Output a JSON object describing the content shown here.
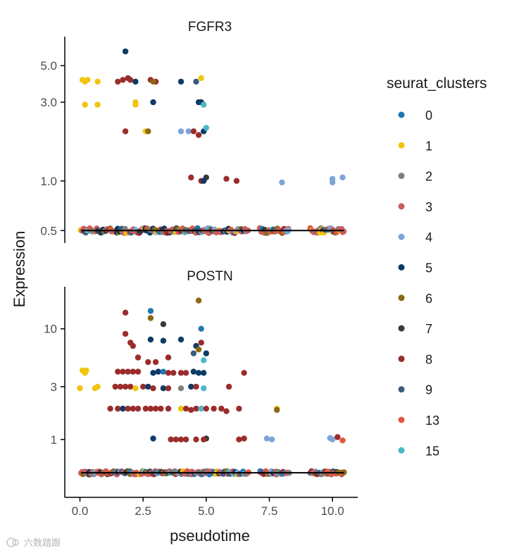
{
  "chart_data": {
    "type": "scatter",
    "xlabel": "pseudotime",
    "ylabel": "Expression",
    "x_ticks": [
      "0.0",
      "2.5",
      "5.0",
      "7.5",
      "10.0"
    ],
    "xlim": [
      -0.6,
      11.0
    ],
    "panels": [
      {
        "title": "FGFR3",
        "yscale": "log10",
        "ylim": [
          0.42,
          7.5
        ],
        "y_ticks": [
          0.5,
          1.0,
          3.0,
          5.0
        ],
        "y_tick_labels": [
          "0.5",
          "1.0",
          "3.0",
          "5.0"
        ],
        "trend_line": {
          "x": [
            0.05,
            10.45
          ],
          "y": [
            0.5,
            0.5
          ]
        },
        "points": [
          {
            "x": 1.8,
            "y": 6.1,
            "c": "5"
          },
          {
            "x": 0.1,
            "y": 4.1,
            "c": "1"
          },
          {
            "x": 0.2,
            "y": 4.0,
            "c": "1"
          },
          {
            "x": 0.3,
            "y": 4.1,
            "c": "1"
          },
          {
            "x": 0.7,
            "y": 4.0,
            "c": "1"
          },
          {
            "x": 0.2,
            "y": 2.9,
            "c": "1"
          },
          {
            "x": 0.7,
            "y": 2.9,
            "c": "1"
          },
          {
            "x": 2.2,
            "y": 3.0,
            "c": "1"
          },
          {
            "x": 2.2,
            "y": 2.9,
            "c": "1"
          },
          {
            "x": 4.8,
            "y": 4.2,
            "c": "1"
          },
          {
            "x": 2.6,
            "y": 2.0,
            "c": "1"
          },
          {
            "x": 2.7,
            "y": 2.0,
            "c": "6"
          },
          {
            "x": 1.5,
            "y": 4.0,
            "c": "8"
          },
          {
            "x": 1.7,
            "y": 4.1,
            "c": "8"
          },
          {
            "x": 1.9,
            "y": 4.2,
            "c": "8"
          },
          {
            "x": 2.0,
            "y": 4.1,
            "c": "8"
          },
          {
            "x": 2.8,
            "y": 4.1,
            "c": "8"
          },
          {
            "x": 3.0,
            "y": 4.0,
            "c": "8"
          },
          {
            "x": 2.9,
            "y": 4.0,
            "c": "6"
          },
          {
            "x": 2.2,
            "y": 4.0,
            "c": "5"
          },
          {
            "x": 4.0,
            "y": 4.0,
            "c": "5"
          },
          {
            "x": 4.6,
            "y": 4.0,
            "c": "9"
          },
          {
            "x": 2.9,
            "y": 3.0,
            "c": "5"
          },
          {
            "x": 4.7,
            "y": 3.0,
            "c": "5"
          },
          {
            "x": 4.8,
            "y": 3.0,
            "c": "5"
          },
          {
            "x": 4.9,
            "y": 2.9,
            "c": "15"
          },
          {
            "x": 1.8,
            "y": 2.0,
            "c": "8"
          },
          {
            "x": 4.0,
            "y": 2.0,
            "c": "4"
          },
          {
            "x": 4.3,
            "y": 2.0,
            "c": "4"
          },
          {
            "x": 4.5,
            "y": 2.0,
            "c": "8"
          },
          {
            "x": 4.7,
            "y": 1.9,
            "c": "8"
          },
          {
            "x": 4.9,
            "y": 2.0,
            "c": "5"
          },
          {
            "x": 5.0,
            "y": 2.1,
            "c": "15"
          },
          {
            "x": 4.4,
            "y": 1.05,
            "c": "8"
          },
          {
            "x": 4.8,
            "y": 1.0,
            "c": "8"
          },
          {
            "x": 5.0,
            "y": 1.05,
            "c": "7"
          },
          {
            "x": 4.9,
            "y": 1.0,
            "c": "5"
          },
          {
            "x": 5.8,
            "y": 1.03,
            "c": "8"
          },
          {
            "x": 6.2,
            "y": 1.0,
            "c": "8"
          },
          {
            "x": 8.0,
            "y": 0.98,
            "c": "4"
          },
          {
            "x": 10.0,
            "y": 1.03,
            "c": "4"
          },
          {
            "x": 10.0,
            "y": 0.98,
            "c": "4"
          },
          {
            "x": 10.4,
            "y": 1.05,
            "c": "4"
          }
        ]
      },
      {
        "title": "POSTN",
        "yscale": "log10",
        "ylim": [
          0.3,
          24
        ],
        "y_ticks": [
          1,
          3,
          10
        ],
        "y_tick_labels": [
          "1",
          "3",
          "10"
        ],
        "trend_line": {
          "x": [
            0.05,
            10.45
          ],
          "y": [
            0.5,
            0.5
          ]
        },
        "points": [
          {
            "x": 4.7,
            "y": 18,
            "c": "6"
          },
          {
            "x": 1.8,
            "y": 14,
            "c": "8"
          },
          {
            "x": 2.8,
            "y": 14.5,
            "c": "0"
          },
          {
            "x": 2.8,
            "y": 12.5,
            "c": "6"
          },
          {
            "x": 3.3,
            "y": 11,
            "c": "7"
          },
          {
            "x": 4.8,
            "y": 10,
            "c": "0"
          },
          {
            "x": 1.8,
            "y": 9.0,
            "c": "8"
          },
          {
            "x": 2.0,
            "y": 7.5,
            "c": "8"
          },
          {
            "x": 2.1,
            "y": 7.0,
            "c": "8"
          },
          {
            "x": 2.8,
            "y": 8.0,
            "c": "5"
          },
          {
            "x": 3.3,
            "y": 7.8,
            "c": "5"
          },
          {
            "x": 4.0,
            "y": 8.0,
            "c": "5"
          },
          {
            "x": 4.6,
            "y": 7.0,
            "c": "5"
          },
          {
            "x": 4.7,
            "y": 6.5,
            "c": "6"
          },
          {
            "x": 4.8,
            "y": 7.5,
            "c": "8"
          },
          {
            "x": 4.5,
            "y": 6.0,
            "c": "9"
          },
          {
            "x": 5.0,
            "y": 6.0,
            "c": "5"
          },
          {
            "x": 4.9,
            "y": 5.2,
            "c": "15"
          },
          {
            "x": 2.7,
            "y": 5.0,
            "c": "8"
          },
          {
            "x": 3.0,
            "y": 5.0,
            "c": "8"
          },
          {
            "x": 2.3,
            "y": 5.5,
            "c": "8"
          },
          {
            "x": 3.5,
            "y": 5.5,
            "c": "8"
          },
          {
            "x": 0.1,
            "y": 4.2,
            "c": "1"
          },
          {
            "x": 0.2,
            "y": 4.0,
            "c": "1"
          },
          {
            "x": 0.25,
            "y": 4.2,
            "c": "1"
          },
          {
            "x": 1.5,
            "y": 4.1,
            "c": "8"
          },
          {
            "x": 1.7,
            "y": 4.1,
            "c": "8"
          },
          {
            "x": 1.9,
            "y": 4.1,
            "c": "8"
          },
          {
            "x": 2.1,
            "y": 4.1,
            "c": "8"
          },
          {
            "x": 2.3,
            "y": 4.1,
            "c": "8"
          },
          {
            "x": 2.9,
            "y": 4.0,
            "c": "5"
          },
          {
            "x": 3.1,
            "y": 4.1,
            "c": "5"
          },
          {
            "x": 3.3,
            "y": 4.1,
            "c": "0"
          },
          {
            "x": 3.5,
            "y": 4.0,
            "c": "8"
          },
          {
            "x": 3.7,
            "y": 4.0,
            "c": "8"
          },
          {
            "x": 4.0,
            "y": 4.0,
            "c": "8"
          },
          {
            "x": 4.2,
            "y": 4.0,
            "c": "8"
          },
          {
            "x": 4.5,
            "y": 4.1,
            "c": "5"
          },
          {
            "x": 4.7,
            "y": 4.0,
            "c": "5"
          },
          {
            "x": 4.9,
            "y": 4.0,
            "c": "5"
          },
          {
            "x": 6.5,
            "y": 4.0,
            "c": "8"
          },
          {
            "x": 0.0,
            "y": 2.9,
            "c": "1"
          },
          {
            "x": 0.6,
            "y": 2.9,
            "c": "1"
          },
          {
            "x": 0.7,
            "y": 3.0,
            "c": "1"
          },
          {
            "x": 1.4,
            "y": 3.0,
            "c": "8"
          },
          {
            "x": 1.6,
            "y": 3.0,
            "c": "8"
          },
          {
            "x": 1.8,
            "y": 3.0,
            "c": "8"
          },
          {
            "x": 2.0,
            "y": 3.0,
            "c": "8"
          },
          {
            "x": 2.2,
            "y": 2.9,
            "c": "1"
          },
          {
            "x": 2.5,
            "y": 3.0,
            "c": "8"
          },
          {
            "x": 2.7,
            "y": 3.0,
            "c": "5"
          },
          {
            "x": 2.9,
            "y": 2.9,
            "c": "8"
          },
          {
            "x": 3.3,
            "y": 2.9,
            "c": "5"
          },
          {
            "x": 3.5,
            "y": 2.9,
            "c": "8"
          },
          {
            "x": 4.0,
            "y": 2.9,
            "c": "2"
          },
          {
            "x": 4.4,
            "y": 3.0,
            "c": "5"
          },
          {
            "x": 4.6,
            "y": 3.0,
            "c": "8"
          },
          {
            "x": 4.9,
            "y": 2.9,
            "c": "15"
          },
          {
            "x": 5.9,
            "y": 3.0,
            "c": "8"
          },
          {
            "x": 1.2,
            "y": 1.9,
            "c": "8"
          },
          {
            "x": 1.5,
            "y": 1.9,
            "c": "8"
          },
          {
            "x": 1.7,
            "y": 1.9,
            "c": "5"
          },
          {
            "x": 1.9,
            "y": 1.9,
            "c": "8"
          },
          {
            "x": 2.1,
            "y": 1.9,
            "c": "8"
          },
          {
            "x": 2.3,
            "y": 1.9,
            "c": "8"
          },
          {
            "x": 2.6,
            "y": 1.9,
            "c": "8"
          },
          {
            "x": 2.8,
            "y": 1.9,
            "c": "8"
          },
          {
            "x": 3.0,
            "y": 1.9,
            "c": "8"
          },
          {
            "x": 3.2,
            "y": 1.9,
            "c": "8"
          },
          {
            "x": 3.5,
            "y": 1.9,
            "c": "8"
          },
          {
            "x": 4.0,
            "y": 1.9,
            "c": "1"
          },
          {
            "x": 4.2,
            "y": 1.9,
            "c": "8"
          },
          {
            "x": 4.4,
            "y": 1.85,
            "c": "8"
          },
          {
            "x": 4.6,
            "y": 1.9,
            "c": "8"
          },
          {
            "x": 4.8,
            "y": 1.9,
            "c": "15"
          },
          {
            "x": 5.0,
            "y": 1.9,
            "c": "8"
          },
          {
            "x": 5.3,
            "y": 1.9,
            "c": "8"
          },
          {
            "x": 5.6,
            "y": 1.9,
            "c": "8"
          },
          {
            "x": 6.3,
            "y": 1.9,
            "c": "8"
          },
          {
            "x": 5.8,
            "y": 1.8,
            "c": "8"
          },
          {
            "x": 7.8,
            "y": 1.9,
            "c": "1"
          },
          {
            "x": 7.8,
            "y": 1.85,
            "c": "6"
          },
          {
            "x": 2.9,
            "y": 1.02,
            "c": "5"
          },
          {
            "x": 3.6,
            "y": 1.0,
            "c": "8"
          },
          {
            "x": 3.8,
            "y": 1.0,
            "c": "8"
          },
          {
            "x": 4.0,
            "y": 1.0,
            "c": "8"
          },
          {
            "x": 4.2,
            "y": 1.0,
            "c": "8"
          },
          {
            "x": 4.6,
            "y": 1.0,
            "c": "8"
          },
          {
            "x": 5.0,
            "y": 1.02,
            "c": "7"
          },
          {
            "x": 4.9,
            "y": 1.0,
            "c": "8"
          },
          {
            "x": 6.3,
            "y": 1.0,
            "c": "8"
          },
          {
            "x": 6.5,
            "y": 1.02,
            "c": "8"
          },
          {
            "x": 7.4,
            "y": 1.02,
            "c": "4"
          },
          {
            "x": 7.6,
            "y": 1.0,
            "c": "4"
          },
          {
            "x": 9.9,
            "y": 1.03,
            "c": "4"
          },
          {
            "x": 10.0,
            "y": 1.0,
            "c": "4"
          },
          {
            "x": 10.2,
            "y": 1.05,
            "c": "8"
          },
          {
            "x": 10.4,
            "y": 0.98,
            "c": "13"
          }
        ]
      }
    ],
    "legend": {
      "title": "seurat_clusters",
      "position": "right",
      "entries": [
        {
          "label": "0",
          "color": "#1F78B4"
        },
        {
          "label": "1",
          "color": "#F1C40F"
        },
        {
          "label": "2",
          "color": "#7F7F7F"
        },
        {
          "label": "3",
          "color": "#CD5C5C"
        },
        {
          "label": "4",
          "color": "#7EA3D9"
        },
        {
          "label": "5",
          "color": "#0D3B66"
        },
        {
          "label": "6",
          "color": "#8B6914"
        },
        {
          "label": "7",
          "color": "#3A3A3A"
        },
        {
          "label": "8",
          "color": "#9B2C2C"
        },
        {
          "label": "9",
          "color": "#3B5B7E"
        },
        {
          "label": "13",
          "color": "#E05A3F"
        },
        {
          "label": "15",
          "color": "#4DB6C8"
        }
      ]
    },
    "baseline_mix": [
      "3",
      "3",
      "3",
      "3",
      "8",
      "0",
      "5",
      "1",
      "15",
      "9",
      "4",
      "13",
      "2",
      "7",
      "6"
    ]
  },
  "watermark": "六数踏跟"
}
